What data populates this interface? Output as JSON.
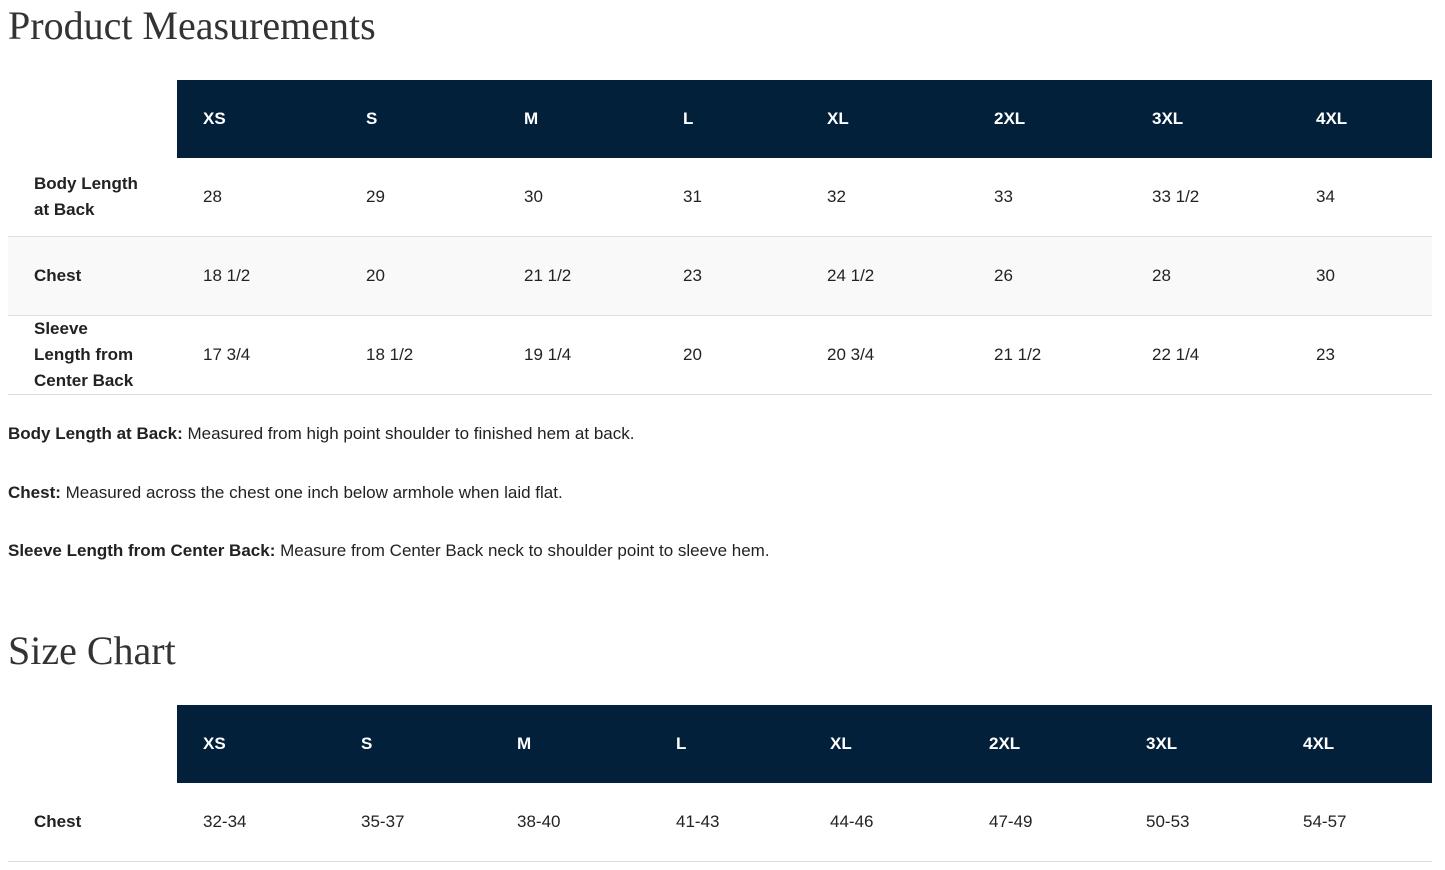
{
  "measurements": {
    "title": "Product Measurements",
    "sizes": [
      "XS",
      "S",
      "M",
      "L",
      "XL",
      "2XL",
      "3XL",
      "4XL"
    ],
    "rows": [
      {
        "label": "Body Length at Back",
        "values": [
          "28",
          "29",
          "30",
          "31",
          "32",
          "33",
          "33 1/2",
          "34"
        ]
      },
      {
        "label": "Chest",
        "values": [
          "18 1/2",
          "20",
          "21 1/2",
          "23",
          "24 1/2",
          "26",
          "28",
          "30"
        ]
      },
      {
        "label": "Sleeve Length from Center Back",
        "values": [
          "17 3/4",
          "18 1/2",
          "19 1/4",
          "20",
          "20 3/4",
          "21 1/2",
          "22 1/4",
          "23"
        ]
      }
    ]
  },
  "notes": [
    {
      "term": "Body Length at Back:",
      "text": "Measured from high point shoulder to finished hem at back."
    },
    {
      "term": "Chest:",
      "text": "Measured across the chest one inch below armhole when laid flat."
    },
    {
      "term": "Sleeve Length from Center Back:",
      "text": "Measure from Center Back neck to shoulder point to sleeve hem."
    }
  ],
  "size_chart": {
    "title": "Size Chart",
    "sizes": [
      "XS",
      "S",
      "M",
      "L",
      "XL",
      "2XL",
      "3XL",
      "4XL"
    ],
    "rows": [
      {
        "label": "Chest",
        "values": [
          "32-34",
          "35-37",
          "38-40",
          "41-43",
          "44-46",
          "47-49",
          "50-53",
          "54-57"
        ]
      }
    ]
  }
}
